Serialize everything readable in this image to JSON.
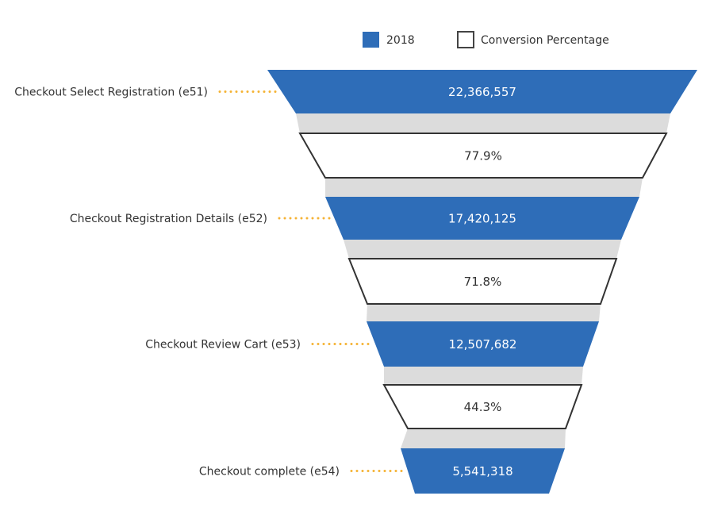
{
  "chart_data": {
    "type": "funnel",
    "categories": [
      "Checkout Select Registration (e51)",
      "Checkout Registration Details (e52)",
      "Checkout Review Cart (e53)",
      "Checkout complete (e54)"
    ],
    "series": [
      {
        "name": "2018",
        "color": "#2e6db8",
        "values": [
          22366557,
          17420125,
          12507682,
          5541318
        ],
        "value_labels": [
          "22,366,557",
          "17,420,125",
          "12,507,682",
          "5,541,318"
        ]
      }
    ],
    "conversion": {
      "name": "Conversion Percentage",
      "color": "#ffffff",
      "values": [
        77.9,
        71.8,
        44.3
      ],
      "value_labels": [
        "77.9%",
        "71.8%",
        "44.3%"
      ]
    },
    "connector_color": "#dcdcdc",
    "leader_color": "#f5b335"
  }
}
